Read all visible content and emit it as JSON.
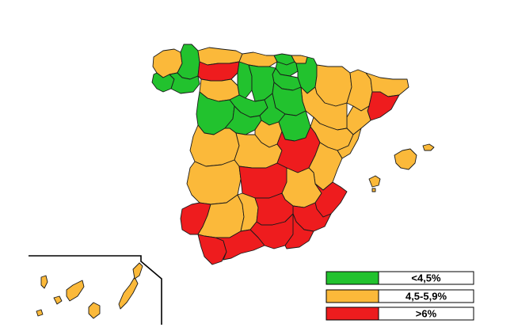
{
  "colors": {
    "green": "#22c22e",
    "orange": "#fbb93a",
    "red": "#ee1c1e",
    "background": "#ffffff",
    "border": "#1a1a1a"
  },
  "legend": [
    {
      "label": "<4,5%",
      "color": "#22c22e"
    },
    {
      "label": "4,5-5,9%",
      "color": "#fbb93a"
    },
    {
      "label": ">6%",
      "color": "#ee1c1e"
    }
  ],
  "regions": [
    {
      "name": "a-coruna",
      "category": "orange"
    },
    {
      "name": "lugo",
      "category": "green"
    },
    {
      "name": "pontevedra",
      "category": "green"
    },
    {
      "name": "ourense",
      "category": "green"
    },
    {
      "name": "asturias",
      "category": "orange"
    },
    {
      "name": "cantabria",
      "category": "orange"
    },
    {
      "name": "bizkaia",
      "category": "green"
    },
    {
      "name": "gipuzkoa",
      "category": "orange"
    },
    {
      "name": "alava",
      "category": "green"
    },
    {
      "name": "navarra",
      "category": "green"
    },
    {
      "name": "huesca",
      "category": "orange"
    },
    {
      "name": "lleida",
      "category": "orange"
    },
    {
      "name": "girona",
      "category": "orange"
    },
    {
      "name": "barcelona",
      "category": "red"
    },
    {
      "name": "tarragona",
      "category": "orange"
    },
    {
      "name": "la-rioja",
      "category": "green"
    },
    {
      "name": "zaragoza",
      "category": "orange"
    },
    {
      "name": "teruel",
      "category": "orange"
    },
    {
      "name": "castellon",
      "category": "orange"
    },
    {
      "name": "leon",
      "category": "red"
    },
    {
      "name": "palencia",
      "category": "green"
    },
    {
      "name": "burgos",
      "category": "green"
    },
    {
      "name": "soria",
      "category": "green"
    },
    {
      "name": "zamora",
      "category": "orange"
    },
    {
      "name": "valladolid",
      "category": "green"
    },
    {
      "name": "segovia",
      "category": "green"
    },
    {
      "name": "salamanca",
      "category": "green"
    },
    {
      "name": "avila",
      "category": "green"
    },
    {
      "name": "madrid",
      "category": "orange"
    },
    {
      "name": "guadalajara",
      "category": "green"
    },
    {
      "name": "caceres",
      "category": "orange"
    },
    {
      "name": "toledo",
      "category": "orange"
    },
    {
      "name": "cuenca",
      "category": "red"
    },
    {
      "name": "valencia",
      "category": "orange"
    },
    {
      "name": "badajoz",
      "category": "orange"
    },
    {
      "name": "ciudad-real",
      "category": "red"
    },
    {
      "name": "albacete",
      "category": "orange"
    },
    {
      "name": "alicante",
      "category": "red"
    },
    {
      "name": "murcia",
      "category": "red"
    },
    {
      "name": "huelva",
      "category": "red"
    },
    {
      "name": "sevilla",
      "category": "orange"
    },
    {
      "name": "cordoba",
      "category": "orange"
    },
    {
      "name": "jaen",
      "category": "red"
    },
    {
      "name": "granada",
      "category": "red"
    },
    {
      "name": "almeria",
      "category": "red"
    },
    {
      "name": "cadiz",
      "category": "red"
    },
    {
      "name": "malaga",
      "category": "red"
    },
    {
      "name": "mallorca",
      "category": "orange"
    },
    {
      "name": "menorca",
      "category": "orange"
    },
    {
      "name": "ibiza",
      "category": "orange"
    },
    {
      "name": "formentera",
      "category": "orange"
    },
    {
      "name": "canarias",
      "category": "orange"
    }
  ]
}
